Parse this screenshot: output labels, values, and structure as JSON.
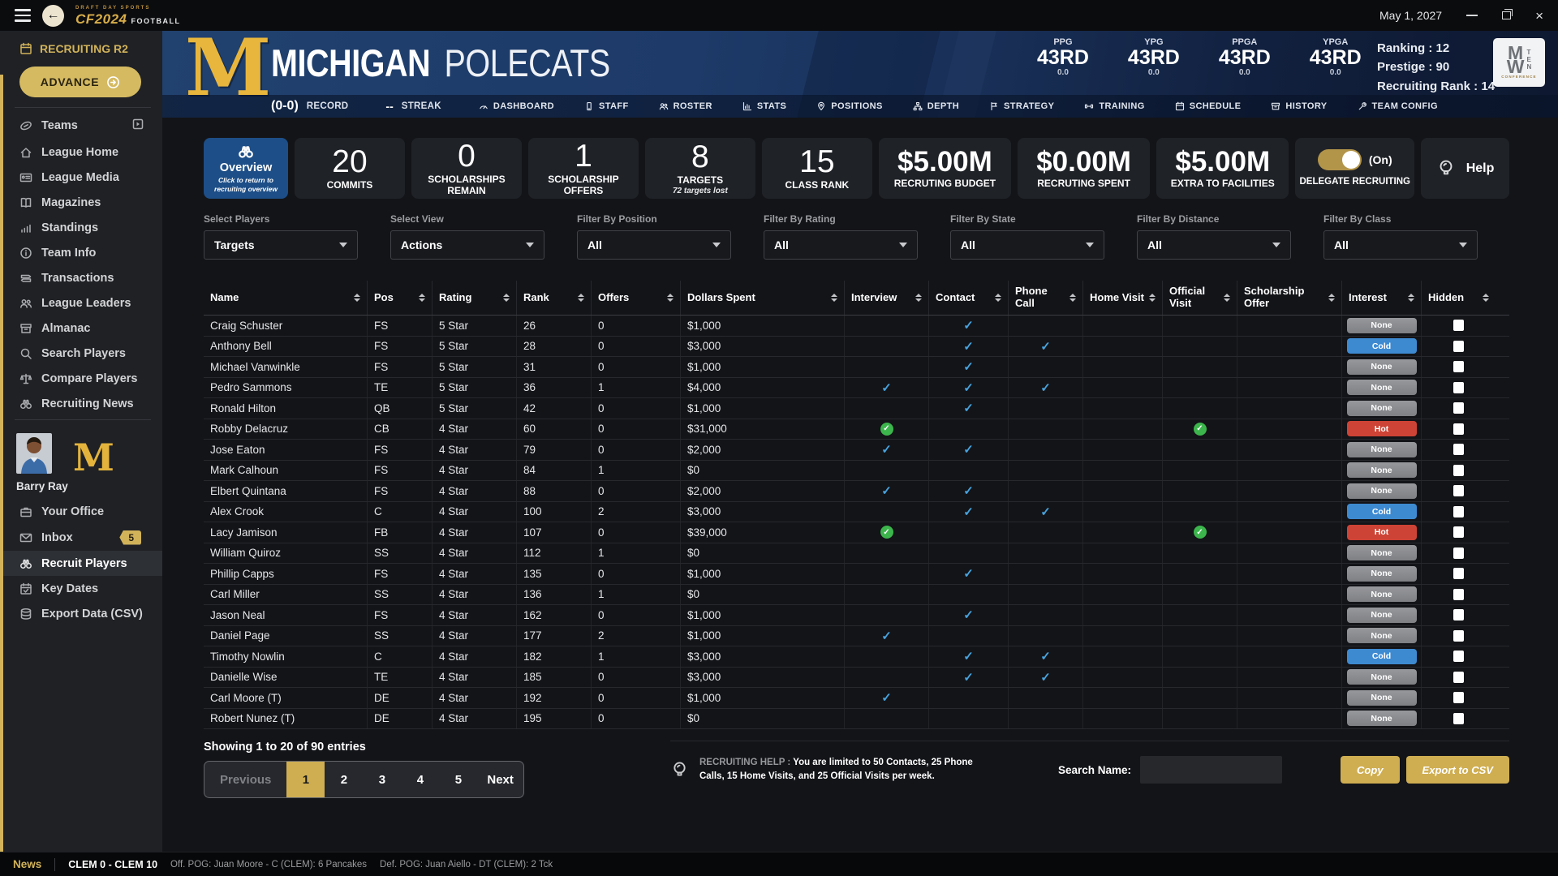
{
  "colors": {
    "gold": "#d2b35a",
    "navy": "#1d3a68",
    "overview_blue": "#1d4e87",
    "cold": "#3e8ad1",
    "hot": "#cd4335",
    "none_badge": "#8a8c90",
    "check_blue": "#47a3de",
    "check_green": "#3cb54c"
  },
  "titlebar": {
    "date": "May 1, 2027",
    "logo_top": "DRAFT DAY SPORTS",
    "logo_cf": "CF2024",
    "logo_fb": "FOOTBALL",
    "icons": [
      "hamburger-icon",
      "back-icon",
      "minimize-icon",
      "restore-icon",
      "close-icon"
    ]
  },
  "sidebar": {
    "phase": "RECRUITING R2",
    "phase_icon": "calendar-icon",
    "advance_label": "ADVANCE",
    "advance_icon": "advance-arrow-icon",
    "items": [
      {
        "label": "Teams",
        "icon": "football-icon",
        "expand": true
      },
      {
        "label": "League Home",
        "icon": "home-icon"
      },
      {
        "label": "League Media",
        "icon": "media-icon"
      },
      {
        "label": "Magazines",
        "icon": "magazine-icon"
      },
      {
        "label": "Standings",
        "icon": "standings-icon"
      },
      {
        "label": "Team Info",
        "icon": "info-icon"
      },
      {
        "label": "Transactions",
        "icon": "transactions-icon"
      },
      {
        "label": "League Leaders",
        "icon": "leaders-icon"
      },
      {
        "label": "Almanac",
        "icon": "almanac-icon"
      },
      {
        "label": "Search Players",
        "icon": "search-icon"
      },
      {
        "label": "Compare Players",
        "icon": "compare-icon"
      },
      {
        "label": "Recruiting News",
        "icon": "recruiting-news-icon"
      }
    ],
    "user": {
      "name": "Barry Ray",
      "team_letter": "M"
    },
    "user_items": [
      {
        "label": "Your Office",
        "icon": "office-icon"
      },
      {
        "label": "Inbox",
        "icon": "inbox-icon",
        "badge": "5"
      },
      {
        "label": "Recruit Players",
        "icon": "recruit-players-icon",
        "active": true
      },
      {
        "label": "Key Dates",
        "icon": "keydates-icon"
      },
      {
        "label": "Export Data (CSV)",
        "icon": "export-icon"
      }
    ]
  },
  "team_header": {
    "logo_letter": "M",
    "team_name_primary": "MICHIGAN",
    "team_name_secondary": "POLECATS",
    "record_value": "(0-0)",
    "record_label": "RECORD",
    "streak_value": "--",
    "streak_label": "STREAK",
    "nav": [
      {
        "label": "DASHBOARD",
        "icon": "dashboard-icon"
      },
      {
        "label": "STAFF",
        "icon": "staff-icon"
      },
      {
        "label": "ROSTER",
        "icon": "roster-icon"
      },
      {
        "label": "STATS",
        "icon": "stats-icon"
      },
      {
        "label": "POSITIONS",
        "icon": "positions-icon"
      },
      {
        "label": "DEPTH",
        "icon": "depth-icon"
      },
      {
        "label": "STRATEGY",
        "icon": "strategy-icon"
      },
      {
        "label": "TRAINING",
        "icon": "training-icon"
      },
      {
        "label": "SCHEDULE",
        "icon": "schedule-icon"
      },
      {
        "label": "HISTORY",
        "icon": "history-icon"
      },
      {
        "label": "TEAM CONFIG",
        "icon": "teamconfig-icon"
      }
    ],
    "stats": [
      {
        "label": "PPG",
        "rank": "43RD",
        "value": "0.0"
      },
      {
        "label": "YPG",
        "rank": "43RD",
        "value": "0.0"
      },
      {
        "label": "PPGA",
        "rank": "43RD",
        "value": "0.0"
      },
      {
        "label": "YPGA",
        "rank": "43RD",
        "value": "0.0"
      }
    ],
    "ranking": "Ranking : 12",
    "prestige": "Prestige : 90",
    "recruiting_rank": "Recruiting Rank : 14",
    "conference_logo": {
      "letters_left": "MW",
      "letters_right": "TEN",
      "caption": "CONFERENCE"
    }
  },
  "summary_cards": [
    {
      "type": "overview",
      "title": "Overview",
      "note": "Click to return to recruiting overview",
      "icon": "overview-binoculars-icon"
    },
    {
      "type": "stat",
      "value": "20",
      "label": "COMMITS"
    },
    {
      "type": "stat",
      "value": "0",
      "label": "SCHOLARSHIPS REMAIN"
    },
    {
      "type": "stat",
      "value": "1",
      "label": "SCHOLARSHIP OFFERS"
    },
    {
      "type": "stat",
      "value": "8",
      "label": "TARGETS",
      "note": "72 targets lost"
    },
    {
      "type": "stat",
      "value": "15",
      "label": "CLASS RANK"
    },
    {
      "type": "money",
      "value": "$5.00M",
      "label": "RECRUTING BUDGET"
    },
    {
      "type": "money",
      "value": "$0.00M",
      "label": "RECRUTING SPENT"
    },
    {
      "type": "money",
      "value": "$5.00M",
      "label": "EXTRA TO FACILITIES"
    },
    {
      "type": "toggle",
      "state_label": "(On)",
      "label": "DELEGATE RECRUITING",
      "on": true
    },
    {
      "type": "help",
      "label": "Help",
      "icon": "help-bulb-icon"
    }
  ],
  "filters": [
    {
      "label": "Select Players",
      "value": "Targets"
    },
    {
      "label": "Select View",
      "value": "Actions"
    },
    {
      "label": "Filter By Position",
      "value": "All"
    },
    {
      "label": "Filter By Rating",
      "value": "All"
    },
    {
      "label": "Filter By State",
      "value": "All"
    },
    {
      "label": "Filter By Distance",
      "value": "All"
    },
    {
      "label": "Filter By Class",
      "value": "All"
    }
  ],
  "table": {
    "columns": [
      {
        "key": "name",
        "label": "Name"
      },
      {
        "key": "pos",
        "label": "Pos"
      },
      {
        "key": "rating",
        "label": "Rating"
      },
      {
        "key": "rank",
        "label": "Rank"
      },
      {
        "key": "offers",
        "label": "Offers"
      },
      {
        "key": "dollars",
        "label": "Dollars Spent"
      },
      {
        "key": "interview",
        "label": "Interview"
      },
      {
        "key": "contact",
        "label": "Contact"
      },
      {
        "key": "phone_call",
        "label": "Phone Call"
      },
      {
        "key": "home_visit",
        "label": "Home Visit"
      },
      {
        "key": "official_visit",
        "label": "Official Visit"
      },
      {
        "key": "scholarship_offer",
        "label": "Scholarship Offer"
      },
      {
        "key": "interest",
        "label": "Interest"
      },
      {
        "key": "hidden",
        "label": "Hidden"
      }
    ],
    "rows": [
      {
        "name": "Craig Schuster",
        "pos": "FS",
        "rating": "5 Star",
        "rank": "26",
        "offers": "0",
        "dollars": "$1,000",
        "interview": "",
        "contact": "check",
        "phone_call": "",
        "home_visit": "",
        "official_visit": "",
        "scholarship_offer": "",
        "interest": "None",
        "hidden": false
      },
      {
        "name": "Anthony Bell",
        "pos": "FS",
        "rating": "5 Star",
        "rank": "28",
        "offers": "0",
        "dollars": "$3,000",
        "interview": "",
        "contact": "check",
        "phone_call": "check",
        "home_visit": "",
        "official_visit": "",
        "scholarship_offer": "",
        "interest": "Cold",
        "hidden": false
      },
      {
        "name": "Michael Vanwinkle",
        "pos": "FS",
        "rating": "5 Star",
        "rank": "31",
        "offers": "0",
        "dollars": "$1,000",
        "interview": "",
        "contact": "check",
        "phone_call": "",
        "home_visit": "",
        "official_visit": "",
        "scholarship_offer": "",
        "interest": "None",
        "hidden": false
      },
      {
        "name": "Pedro Sammons",
        "pos": "TE",
        "rating": "5 Star",
        "rank": "36",
        "offers": "1",
        "dollars": "$4,000",
        "interview": "check",
        "contact": "check",
        "phone_call": "check",
        "home_visit": "",
        "official_visit": "",
        "scholarship_offer": "",
        "interest": "None",
        "hidden": false
      },
      {
        "name": "Ronald Hilton",
        "pos": "QB",
        "rating": "5 Star",
        "rank": "42",
        "offers": "0",
        "dollars": "$1,000",
        "interview": "",
        "contact": "check",
        "phone_call": "",
        "home_visit": "",
        "official_visit": "",
        "scholarship_offer": "",
        "interest": "None",
        "hidden": false
      },
      {
        "name": "Robby Delacruz",
        "pos": "CB",
        "rating": "4 Star",
        "rank": "60",
        "offers": "0",
        "dollars": "$31,000",
        "interview": "check-green",
        "contact": "",
        "phone_call": "",
        "home_visit": "",
        "official_visit": "check-green",
        "scholarship_offer": "",
        "interest": "Hot",
        "hidden": false
      },
      {
        "name": "Jose Eaton",
        "pos": "FS",
        "rating": "4 Star",
        "rank": "79",
        "offers": "0",
        "dollars": "$2,000",
        "interview": "check",
        "contact": "check",
        "phone_call": "",
        "home_visit": "",
        "official_visit": "",
        "scholarship_offer": "",
        "interest": "None",
        "hidden": false
      },
      {
        "name": "Mark Calhoun",
        "pos": "FS",
        "rating": "4 Star",
        "rank": "84",
        "offers": "1",
        "dollars": "$0",
        "interview": "",
        "contact": "",
        "phone_call": "",
        "home_visit": "",
        "official_visit": "",
        "scholarship_offer": "",
        "interest": "None",
        "hidden": false
      },
      {
        "name": "Elbert Quintana",
        "pos": "FS",
        "rating": "4 Star",
        "rank": "88",
        "offers": "0",
        "dollars": "$2,000",
        "interview": "check",
        "contact": "check",
        "phone_call": "",
        "home_visit": "",
        "official_visit": "",
        "scholarship_offer": "",
        "interest": "None",
        "hidden": false
      },
      {
        "name": "Alex Crook",
        "pos": "C",
        "rating": "4 Star",
        "rank": "100",
        "offers": "2",
        "dollars": "$3,000",
        "interview": "",
        "contact": "check",
        "phone_call": "check",
        "home_visit": "",
        "official_visit": "",
        "scholarship_offer": "",
        "interest": "Cold",
        "hidden": false
      },
      {
        "name": "Lacy Jamison",
        "pos": "FB",
        "rating": "4 Star",
        "rank": "107",
        "offers": "0",
        "dollars": "$39,000",
        "interview": "check-green",
        "contact": "",
        "phone_call": "",
        "home_visit": "",
        "official_visit": "check-green",
        "scholarship_offer": "",
        "interest": "Hot",
        "hidden": false
      },
      {
        "name": "William Quiroz",
        "pos": "SS",
        "rating": "4 Star",
        "rank": "112",
        "offers": "1",
        "dollars": "$0",
        "interview": "",
        "contact": "",
        "phone_call": "",
        "home_visit": "",
        "official_visit": "",
        "scholarship_offer": "",
        "interest": "None",
        "hidden": false
      },
      {
        "name": "Phillip Capps",
        "pos": "FS",
        "rating": "4 Star",
        "rank": "135",
        "offers": "0",
        "dollars": "$1,000",
        "interview": "",
        "contact": "check",
        "phone_call": "",
        "home_visit": "",
        "official_visit": "",
        "scholarship_offer": "",
        "interest": "None",
        "hidden": false
      },
      {
        "name": "Carl Miller",
        "pos": "SS",
        "rating": "4 Star",
        "rank": "136",
        "offers": "1",
        "dollars": "$0",
        "interview": "",
        "contact": "",
        "phone_call": "",
        "home_visit": "",
        "official_visit": "",
        "scholarship_offer": "",
        "interest": "None",
        "hidden": false
      },
      {
        "name": "Jason Neal",
        "pos": "FS",
        "rating": "4 Star",
        "rank": "162",
        "offers": "0",
        "dollars": "$1,000",
        "interview": "",
        "contact": "check",
        "phone_call": "",
        "home_visit": "",
        "official_visit": "",
        "scholarship_offer": "",
        "interest": "None",
        "hidden": false
      },
      {
        "name": "Daniel Page",
        "pos": "SS",
        "rating": "4 Star",
        "rank": "177",
        "offers": "2",
        "dollars": "$1,000",
        "interview": "check",
        "contact": "",
        "phone_call": "",
        "home_visit": "",
        "official_visit": "",
        "scholarship_offer": "",
        "interest": "None",
        "hidden": false
      },
      {
        "name": "Timothy Nowlin",
        "pos": "C",
        "rating": "4 Star",
        "rank": "182",
        "offers": "1",
        "dollars": "$3,000",
        "interview": "",
        "contact": "check",
        "phone_call": "check",
        "home_visit": "",
        "official_visit": "",
        "scholarship_offer": "",
        "interest": "Cold",
        "hidden": false
      },
      {
        "name": "Danielle Wise",
        "pos": "TE",
        "rating": "4 Star",
        "rank": "185",
        "offers": "0",
        "dollars": "$3,000",
        "interview": "",
        "contact": "check",
        "phone_call": "check",
        "home_visit": "",
        "official_visit": "",
        "scholarship_offer": "",
        "interest": "None",
        "hidden": false
      },
      {
        "name": "Carl Moore (T)",
        "pos": "DE",
        "rating": "4 Star",
        "rank": "192",
        "offers": "0",
        "dollars": "$1,000",
        "interview": "check",
        "contact": "",
        "phone_call": "",
        "home_visit": "",
        "official_visit": "",
        "scholarship_offer": "",
        "interest": "None",
        "hidden": false
      },
      {
        "name": "Robert Nunez (T)",
        "pos": "DE",
        "rating": "4 Star",
        "rank": "195",
        "offers": "0",
        "dollars": "$0",
        "interview": "",
        "contact": "",
        "phone_call": "",
        "home_visit": "",
        "official_visit": "",
        "scholarship_offer": "",
        "interest": "None",
        "hidden": false
      }
    ]
  },
  "pagination": {
    "showing": "Showing 1 to 20 of 90 entries",
    "pages": [
      "Previous",
      "1",
      "2",
      "3",
      "4",
      "5",
      "Next"
    ],
    "active": "1",
    "disabled": "Previous"
  },
  "help": {
    "icon": "help-bulb-icon",
    "label": "RECRUITING HELP :",
    "body": "You are limited to 50 Contacts, 25 Phone Calls, 15 Home Visits, and 25 Official Visits per week."
  },
  "search": {
    "label": "Search Name:",
    "value": ""
  },
  "actions": {
    "copy_label": "Copy",
    "export_label": "Export to CSV"
  },
  "ticker": {
    "news_label": "News",
    "score": "CLEM 0 - CLEM 10",
    "off_pog": "Off. POG: Juan Moore - C (CLEM): 6 Pancakes",
    "def_pog": "Def. POG: Juan Aiello - DT (CLEM): 2 Tck"
  }
}
